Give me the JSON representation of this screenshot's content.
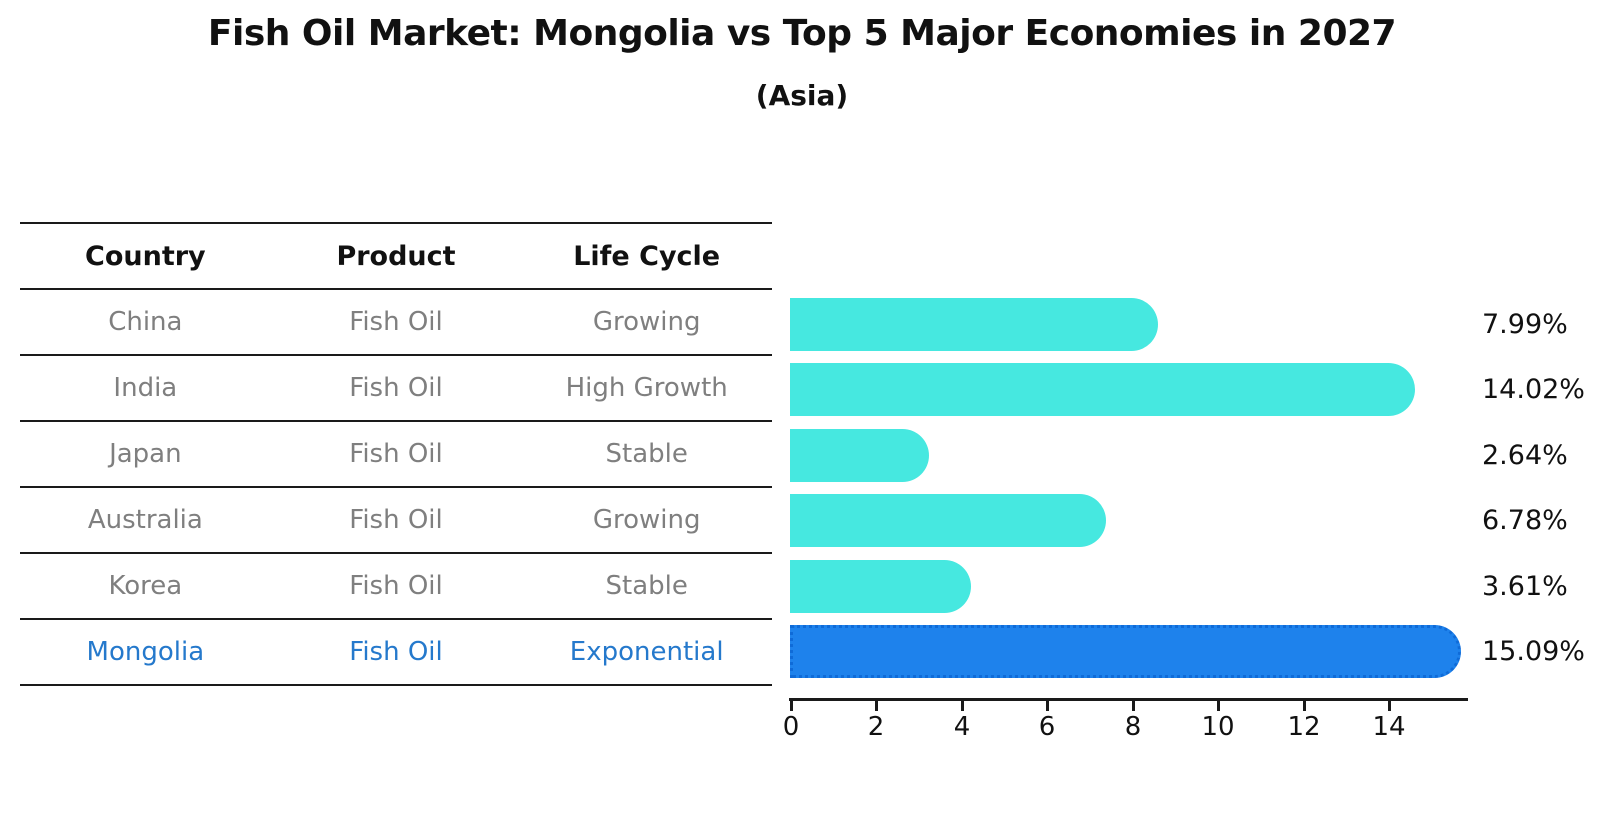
{
  "title": "Fish Oil Market: Mongolia vs Top 5 Major Economies in 2027",
  "subtitle": "(Asia)",
  "colors": {
    "bar_default": "#46e8e0",
    "bar_highlight": "#1e82ec",
    "bar_highlight_edge": "#0f6bd8",
    "highlight_text": "#2579cc",
    "table_text": "#7f7f7f",
    "ink": "#1a1a1a"
  },
  "table": {
    "headers": [
      "Country",
      "Product",
      "Life Cycle"
    ],
    "rows": [
      {
        "country": "China",
        "product": "Fish Oil",
        "life_cycle": "Growing",
        "highlight": false
      },
      {
        "country": "India",
        "product": "Fish Oil",
        "life_cycle": "High Growth",
        "highlight": false
      },
      {
        "country": "Japan",
        "product": "Fish Oil",
        "life_cycle": "Stable",
        "highlight": false
      },
      {
        "country": "Australia",
        "product": "Fish Oil",
        "life_cycle": "Growing",
        "highlight": false
      },
      {
        "country": "Korea",
        "product": "Fish Oil",
        "life_cycle": "Stable",
        "highlight": false
      },
      {
        "country": "Mongolia",
        "product": "Fish Oil",
        "life_cycle": "Exponential",
        "highlight": true
      }
    ]
  },
  "chart_data": {
    "type": "bar",
    "orientation": "horizontal",
    "title": "Fish Oil Market: Mongolia vs Top 5 Major Economies in 2027",
    "subtitle": "(Asia)",
    "categories": [
      "China",
      "India",
      "Japan",
      "Australia",
      "Korea",
      "Mongolia"
    ],
    "values": [
      7.99,
      14.02,
      2.64,
      6.78,
      3.61,
      15.09
    ],
    "value_labels": [
      "7.99%",
      "14.02%",
      "2.64%",
      "6.78%",
      "3.61%",
      "15.09%"
    ],
    "unit": "percent",
    "xticks": [
      0,
      2,
      4,
      6,
      8,
      10,
      12,
      14
    ],
    "xlim": [
      0,
      15.9
    ],
    "grid": false,
    "legend": false,
    "highlight_index": 5,
    "bar_color": "#46e8e0",
    "highlight_bar_color": "#1e82ec"
  }
}
